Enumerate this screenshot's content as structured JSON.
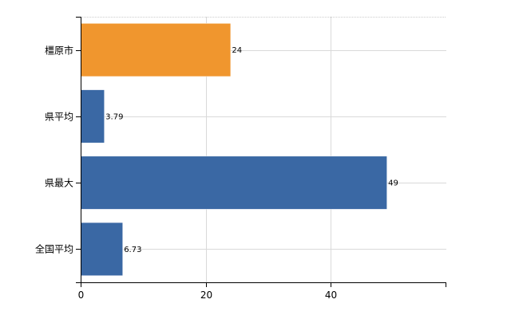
{
  "chart_data": {
    "type": "bar",
    "orientation": "horizontal",
    "categories": [
      "橿原市",
      "県平均",
      "県最大",
      "全国平均"
    ],
    "values": [
      24,
      3.79,
      49,
      6.73
    ],
    "value_labels": [
      "24",
      "3.79",
      "49",
      "6.73"
    ],
    "highlight_category": "橿原市",
    "colors": {
      "highlight": "#f0962e",
      "default": "#3a68a4"
    },
    "xlim": [
      0,
      58.5
    ],
    "xticks": [
      0,
      20,
      40
    ],
    "xtick_labels": [
      "0",
      "20",
      "40"
    ],
    "grid": true,
    "title": "",
    "xlabel": "",
    "ylabel": ""
  }
}
